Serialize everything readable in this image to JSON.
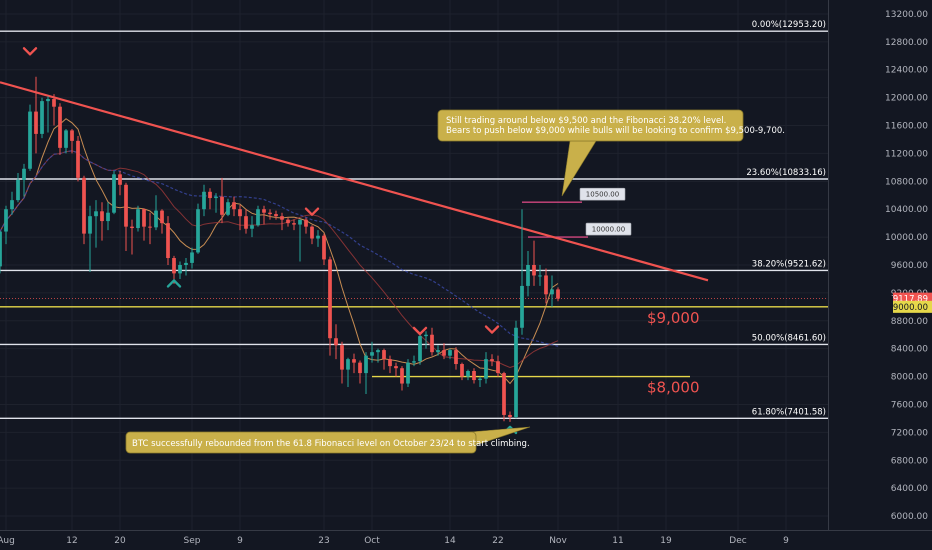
{
  "chart_data": {
    "type": "candlestick",
    "instrument": "BTCUSD",
    "y_axis": {
      "ylim": [
        5800,
        13400
      ],
      "ticks": [
        6000,
        6400,
        6800,
        7200,
        7600,
        8000,
        8400,
        8800,
        9200,
        9600,
        10000,
        10400,
        10800,
        11200,
        11600,
        12000,
        12400,
        12800,
        13200
      ],
      "tick_labels": [
        "6000.00",
        "6400.00",
        "6800.00",
        "7200.00",
        "7600.00",
        "8000.00",
        "8400.00",
        "8800.00",
        "9200.00",
        "9600.00",
        "10000.00",
        "10400.00",
        "10800.00",
        "11200.00",
        "11600.00",
        "12000.00",
        "12400.00",
        "12800.00",
        "13200.00"
      ]
    },
    "x_axis": {
      "start_date": "2019-07-31",
      "end_date": "2019-12-16",
      "ticks": [
        {
          "date": "2019-08-01",
          "label": "Aug"
        },
        {
          "date": "2019-08-12",
          "label": "12"
        },
        {
          "date": "2019-08-20",
          "label": "20"
        },
        {
          "date": "2019-09-01",
          "label": "Sep"
        },
        {
          "date": "2019-09-09",
          "label": "9"
        },
        {
          "date": "2019-09-23",
          "label": "23"
        },
        {
          "date": "2019-10-01",
          "label": "Oct"
        },
        {
          "date": "2019-10-14",
          "label": "14"
        },
        {
          "date": "2019-10-22",
          "label": "22"
        },
        {
          "date": "2019-11-01",
          "label": "Nov"
        },
        {
          "date": "2019-11-11",
          "label": "11"
        },
        {
          "date": "2019-11-19",
          "label": "19"
        },
        {
          "date": "2019-12-01",
          "label": "Dec"
        },
        {
          "date": "2019-12-09",
          "label": "9"
        }
      ]
    },
    "fib_levels": [
      {
        "ratio": "0.00%",
        "price": 12953.2,
        "label": "0.00%(12953.20)"
      },
      {
        "ratio": "23.60%",
        "price": 10833.16,
        "label": "23.60%(10833.16)"
      },
      {
        "ratio": "38.20%",
        "price": 9521.62,
        "label": "38.20%(9521.62)"
      },
      {
        "ratio": "50.00%",
        "price": 8461.6,
        "label": "50.00%(8461.60)"
      },
      {
        "ratio": "61.80%",
        "price": 7401.58,
        "label": "61.80%(7401.58)"
      }
    ],
    "horizontal_levels": [
      {
        "price": 9000,
        "label": "$9,000",
        "color": "#e6d84a",
        "start": "2019-07-31",
        "end": "2019-12-16"
      },
      {
        "price": 8000,
        "label": "$8,000",
        "color": "#e6d84a",
        "start": "2019-10-01",
        "end": "2019-11-23"
      }
    ],
    "trendline": {
      "start": {
        "date": "2019-07-31",
        "price": 12220
      },
      "end": {
        "date": "2019-11-26",
        "price": 9380
      },
      "color": "#f05350"
    },
    "last_price": {
      "value": 9117.89,
      "label": "9117.89",
      "color": "#ef5350"
    },
    "level_tag": {
      "value": 9000,
      "label": "9000.00"
    },
    "target_tags": [
      {
        "label": "10500.00",
        "price": 10500,
        "date": "2019-11-05"
      },
      {
        "label": "10000.00",
        "price": 10000,
        "date": "2019-11-06"
      }
    ],
    "target_lines": [
      {
        "price": 10500,
        "start": "2019-10-26",
        "end": "2019-11-05",
        "color": "#d1477f"
      },
      {
        "price": 10000,
        "start": "2019-10-27",
        "end": "2019-11-06",
        "color": "#d1477f"
      }
    ],
    "annotations": [
      {
        "id": "top-note",
        "lines": [
          "Still trading around below $9,500 and the Fibonacci 38.20% level.",
          "Bears to push below $9,000 while bulls will be looking to confirm $9,500-9,700."
        ]
      },
      {
        "id": "bottom-note",
        "lines": [
          "BTC successfully rebounded from the 61.8 Fibonacci level on October 23/24 to start climbing."
        ]
      }
    ],
    "markers": [
      {
        "type": "down",
        "date": "2019-08-05",
        "price": 12650,
        "color": "#ef5350"
      },
      {
        "type": "up",
        "date": "2019-08-29",
        "price": 9350,
        "color": "#26a69a"
      },
      {
        "type": "down",
        "date": "2019-09-21",
        "price": 10350,
        "color": "#ef5350"
      },
      {
        "type": "down",
        "date": "2019-10-09",
        "price": 8640,
        "color": "#ef5350"
      },
      {
        "type": "down",
        "date": "2019-10-21",
        "price": 8660,
        "color": "#ef5350"
      },
      {
        "type": "up",
        "date": "2019-10-24",
        "price": 7250,
        "color": "#26a69a"
      }
    ],
    "candles": [
      [
        "2019-07-31",
        9580,
        10085,
        9480,
        10080
      ],
      [
        "2019-08-01",
        10080,
        10450,
        9900,
        10400
      ],
      [
        "2019-08-02",
        10400,
        10650,
        10320,
        10530
      ],
      [
        "2019-08-03",
        10530,
        10920,
        10500,
        10820
      ],
      [
        "2019-08-04",
        10820,
        11050,
        10580,
        10980
      ],
      [
        "2019-08-05",
        10980,
        11900,
        10950,
        11800
      ],
      [
        "2019-08-06",
        11800,
        12300,
        11200,
        11480
      ],
      [
        "2019-08-07",
        11480,
        12000,
        11420,
        11950
      ],
      [
        "2019-08-08",
        11950,
        12020,
        11500,
        11980
      ],
      [
        "2019-08-09",
        11980,
        12050,
        11600,
        11870
      ],
      [
        "2019-08-10",
        11870,
        11920,
        11180,
        11280
      ],
      [
        "2019-08-11",
        11280,
        11550,
        11200,
        11530
      ],
      [
        "2019-08-12",
        11530,
        11550,
        11200,
        11380
      ],
      [
        "2019-08-13",
        11380,
        11450,
        10800,
        10850
      ],
      [
        "2019-08-14",
        10850,
        10880,
        9900,
        10050
      ],
      [
        "2019-08-15",
        10050,
        10450,
        9500,
        10300
      ],
      [
        "2019-08-16",
        10300,
        10530,
        9850,
        10370
      ],
      [
        "2019-08-17",
        10370,
        10500,
        9950,
        10230
      ],
      [
        "2019-08-18",
        10230,
        10500,
        10100,
        10350
      ],
      [
        "2019-08-19",
        10350,
        10950,
        10330,
        10900
      ],
      [
        "2019-08-20",
        10900,
        10950,
        10600,
        10750
      ],
      [
        "2019-08-21",
        10750,
        10780,
        9800,
        10150
      ],
      [
        "2019-08-22",
        10150,
        10250,
        9750,
        10130
      ],
      [
        "2019-08-23",
        10130,
        10450,
        10080,
        10400
      ],
      [
        "2019-08-24",
        10400,
        10410,
        9950,
        10150
      ],
      [
        "2019-08-25",
        10150,
        10350,
        9900,
        10140
      ],
      [
        "2019-08-26",
        10140,
        10600,
        10100,
        10380
      ],
      [
        "2019-08-27",
        10380,
        10400,
        10050,
        10200
      ],
      [
        "2019-08-28",
        10200,
        10300,
        9600,
        9700
      ],
      [
        "2019-08-29",
        9700,
        9730,
        9330,
        9480
      ],
      [
        "2019-08-30",
        9480,
        9650,
        9400,
        9600
      ],
      [
        "2019-08-31",
        9600,
        9700,
        9450,
        9630
      ],
      [
        "2019-09-01",
        9630,
        9850,
        9550,
        9780
      ],
      [
        "2019-09-02",
        9780,
        10480,
        9760,
        10400
      ],
      [
        "2019-09-03",
        10400,
        10750,
        10300,
        10650
      ],
      [
        "2019-09-04",
        10650,
        10700,
        10400,
        10560
      ],
      [
        "2019-09-05",
        10560,
        10630,
        10350,
        10580
      ],
      [
        "2019-09-06",
        10580,
        10850,
        10200,
        10320
      ],
      [
        "2019-09-07",
        10320,
        10550,
        10300,
        10500
      ],
      [
        "2019-09-08",
        10500,
        10580,
        10300,
        10400
      ],
      [
        "2019-09-09",
        10400,
        10460,
        10100,
        10300
      ],
      [
        "2019-09-10",
        10300,
        10400,
        10050,
        10120
      ],
      [
        "2019-09-11",
        10120,
        10300,
        10000,
        10170
      ],
      [
        "2019-09-12",
        10170,
        10450,
        10150,
        10400
      ],
      [
        "2019-09-13",
        10400,
        10450,
        10180,
        10350
      ],
      [
        "2019-09-14",
        10350,
        10400,
        10250,
        10330
      ],
      [
        "2019-09-15",
        10330,
        10380,
        10250,
        10300
      ],
      [
        "2019-09-16",
        10300,
        10350,
        10100,
        10250
      ],
      [
        "2019-09-17",
        10250,
        10280,
        10150,
        10200
      ],
      [
        "2019-09-18",
        10200,
        10250,
        10100,
        10180
      ],
      [
        "2019-09-19",
        10180,
        10250,
        9650,
        10250
      ],
      [
        "2019-09-20",
        10250,
        10280,
        10050,
        10150
      ],
      [
        "2019-09-21",
        10150,
        10170,
        9900,
        9980
      ],
      [
        "2019-09-22",
        9980,
        10100,
        9860,
        10020
      ],
      [
        "2019-09-23",
        10020,
        10050,
        9600,
        9680
      ],
      [
        "2019-09-24",
        9680,
        9720,
        8300,
        8550
      ],
      [
        "2019-09-25",
        8550,
        8750,
        8250,
        8450
      ],
      [
        "2019-09-26",
        8450,
        8500,
        7900,
        8100
      ],
      [
        "2019-09-27",
        8100,
        8270,
        7850,
        8250
      ],
      [
        "2019-09-28",
        8250,
        8330,
        8050,
        8200
      ],
      [
        "2019-09-29",
        8200,
        8230,
        7900,
        8050
      ],
      [
        "2019-09-30",
        8050,
        8350,
        7750,
        8300
      ],
      [
        "2019-10-01",
        8300,
        8500,
        8200,
        8350
      ],
      [
        "2019-10-02",
        8350,
        8400,
        8200,
        8380
      ],
      [
        "2019-10-03",
        8380,
        8400,
        8100,
        8250
      ],
      [
        "2019-10-04",
        8250,
        8300,
        8050,
        8150
      ],
      [
        "2019-10-05",
        8150,
        8200,
        8000,
        8120
      ],
      [
        "2019-10-06",
        8120,
        8150,
        7800,
        7900
      ],
      [
        "2019-10-07",
        7900,
        8250,
        7850,
        8200
      ],
      [
        "2019-10-08",
        8200,
        8300,
        8150,
        8220
      ],
      [
        "2019-10-09",
        8220,
        8600,
        8170,
        8580
      ],
      [
        "2019-10-10",
        8580,
        8650,
        8400,
        8600
      ],
      [
        "2019-10-11",
        8600,
        8700,
        8300,
        8350
      ],
      [
        "2019-10-12",
        8350,
        8450,
        8300,
        8380
      ],
      [
        "2019-10-13",
        8380,
        8480,
        8250,
        8300
      ],
      [
        "2019-10-14",
        8300,
        8400,
        8250,
        8380
      ],
      [
        "2019-10-15",
        8380,
        8420,
        8100,
        8180
      ],
      [
        "2019-10-16",
        8180,
        8200,
        7950,
        8000
      ],
      [
        "2019-10-17",
        8000,
        8100,
        7950,
        8080
      ],
      [
        "2019-10-18",
        8080,
        8120,
        7900,
        7950
      ],
      [
        "2019-10-19",
        7950,
        8000,
        7850,
        7970
      ],
      [
        "2019-10-20",
        7970,
        8350,
        7900,
        8250
      ],
      [
        "2019-10-21",
        8250,
        8320,
        8150,
        8220
      ],
      [
        "2019-10-22",
        8220,
        8300,
        8000,
        8050
      ],
      [
        "2019-10-23",
        8050,
        8070,
        7360,
        7450
      ],
      [
        "2019-10-24",
        7450,
        7500,
        7350,
        7420
      ],
      [
        "2019-10-25",
        7420,
        8800,
        7400,
        8700
      ],
      [
        "2019-10-26",
        8700,
        10400,
        8600,
        9300
      ],
      [
        "2019-10-27",
        9300,
        9800,
        9150,
        9600
      ],
      [
        "2019-10-28",
        9600,
        9950,
        9300,
        9450
      ],
      [
        "2019-10-29",
        9450,
        9600,
        9300,
        9450
      ],
      [
        "2019-10-30",
        9450,
        9550,
        9050,
        9180
      ],
      [
        "2019-10-31",
        9180,
        9450,
        9000,
        9250
      ],
      [
        "2019-11-01",
        9250,
        9280,
        9080,
        9118
      ]
    ]
  }
}
